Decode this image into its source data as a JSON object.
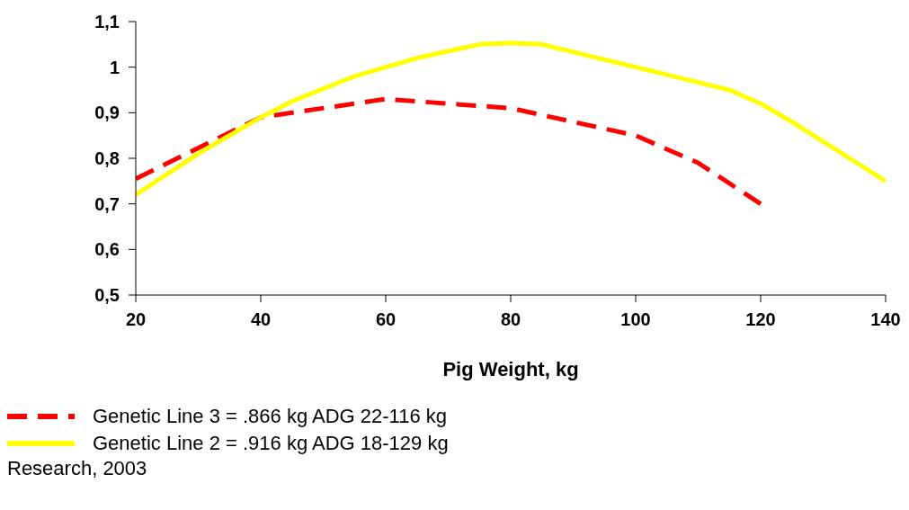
{
  "chart_data": {
    "type": "line",
    "xlabel": "Pig Weight, kg",
    "xlim": [
      20,
      140
    ],
    "xticks": [
      20,
      40,
      60,
      80,
      100,
      120,
      140
    ],
    "ylim": [
      0.5,
      1.1
    ],
    "yticks": [
      {
        "value": 0.5,
        "label": "0,5"
      },
      {
        "value": 0.6,
        "label": "0,6"
      },
      {
        "value": 0.7,
        "label": "0,7"
      },
      {
        "value": 0.8,
        "label": "0,8"
      },
      {
        "value": 0.9,
        "label": "0,9"
      },
      1,
      {
        "value": 1.1,
        "label": "1,1"
      }
    ],
    "grid": false,
    "legend": "bottom",
    "marker": "none",
    "series": [
      {
        "name": "Genetic Line 3 = .866 kg ADG 22-116 kg",
        "color": "#ff0000",
        "line_style": "dashed",
        "x": [
          20,
          40,
          45,
          60,
          80,
          100,
          110,
          120
        ],
        "values": [
          0.755,
          0.89,
          0.9,
          0.93,
          0.91,
          0.85,
          0.79,
          0.7
        ]
      },
      {
        "name": "Genetic Line 2 = .916 kg ADG 18-129 kg",
        "color": "#ffff00",
        "line_style": "solid",
        "x": [
          20,
          30,
          40,
          45,
          55,
          60,
          65,
          75,
          80,
          85,
          100,
          115,
          120,
          125,
          140
        ],
        "values": [
          0.72,
          0.81,
          0.89,
          0.925,
          0.98,
          1.0,
          1.02,
          1.05,
          1.053,
          1.05,
          1.0,
          0.95,
          0.92,
          0.88,
          0.75
        ]
      }
    ],
    "annotations": [
      "Research, 2003"
    ]
  }
}
